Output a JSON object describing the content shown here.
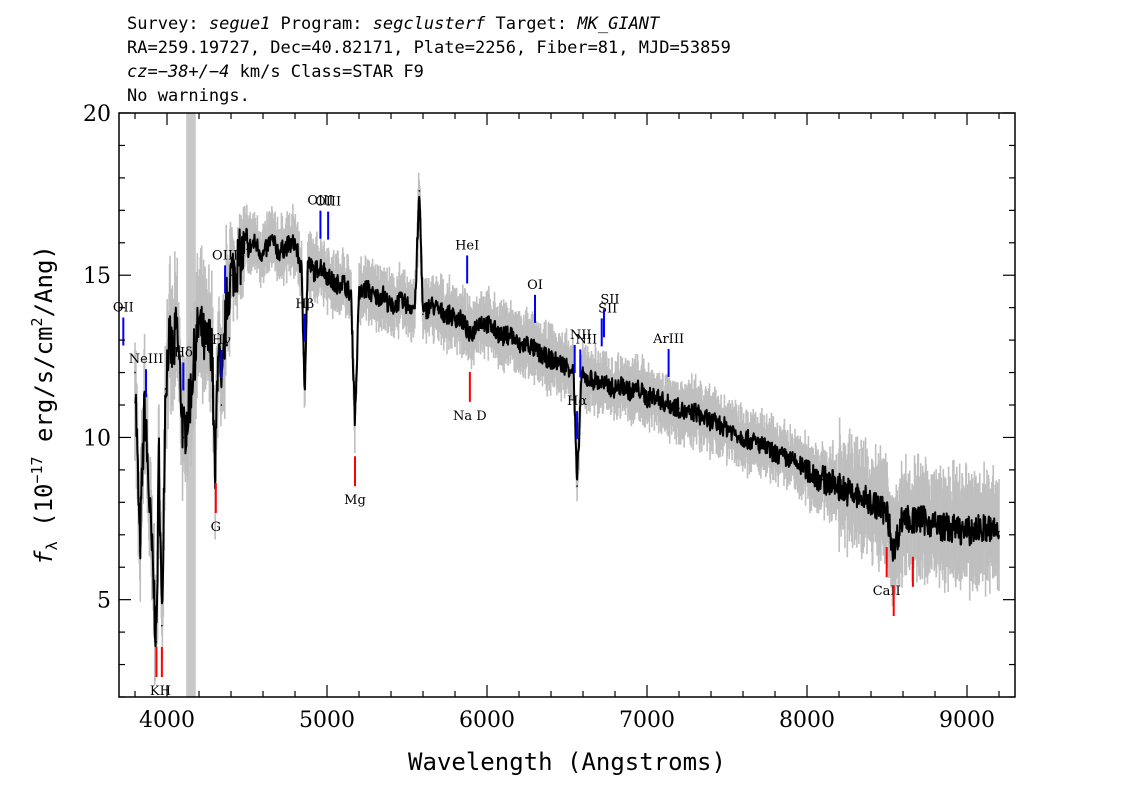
{
  "header": {
    "survey_label": "Survey: ",
    "survey": "segue1",
    "program_label": " Program: ",
    "program": "segclusterf",
    "target_label": " Target: ",
    "target": "MK_GIANT",
    "line2": "RA=259.19727, Dec=40.82171, Plate=2256, Fiber=81, MJD=53859",
    "cz_label": "cz",
    "cz_value": "=−38+/−4",
    "cz_rest": " km/s Class=STAR F9",
    "line4": "No warnings."
  },
  "chart_data": {
    "type": "line",
    "xlabel": "Wavelength (Angstroms)",
    "ylabel_prefix": "f",
    "ylabel_sub": "λ",
    "ylabel_rest": " (10",
    "ylabel_exp": "−17",
    "ylabel_units": " erg/s/cm",
    "ylabel_exp2": "2",
    "ylabel_end": "/Ang)",
    "xlim": [
      3700,
      9300
    ],
    "ylim": [
      2,
      20
    ],
    "xticks": [
      4000,
      5000,
      6000,
      7000,
      8000,
      9000
    ],
    "yticks": [
      5,
      10,
      15,
      20
    ],
    "masked_region": [
      4120,
      4180
    ],
    "series": [
      {
        "x": [
          3800,
          3830,
          3860,
          3900,
          3934,
          3950,
          3968,
          3990,
          4010,
          4040,
          4060,
          4080,
          4102,
          4140,
          4170,
          4200,
          4240,
          4280,
          4300,
          4320,
          4340,
          4370,
          4400,
          4450,
          4500,
          4550,
          4600,
          4650,
          4700,
          4750,
          4800,
          4840,
          4861,
          4880,
          4920,
          4960,
          5000,
          5050,
          5100,
          5150,
          5175,
          5200,
          5250,
          5300,
          5350,
          5400,
          5450,
          5500,
          5550,
          5577,
          5600,
          5650,
          5700,
          5750,
          5800,
          5850,
          5893,
          5950,
          6000,
          6050,
          6100,
          6150,
          6200,
          6250,
          6300,
          6350,
          6400,
          6450,
          6500,
          6540,
          6563,
          6590,
          6620,
          6650,
          6700,
          6750,
          6800,
          6850,
          6900,
          6950,
          7000,
          7050,
          7100,
          7150,
          7200,
          7250,
          7300,
          7350,
          7400,
          7450,
          7500,
          7600,
          7700,
          7800,
          7900,
          8000,
          8100,
          8200,
          8300,
          8400,
          8498,
          8542,
          8600,
          8662,
          8700,
          8800,
          8900,
          9000,
          9100,
          9200
        ],
        "values": [
          12.0,
          6.5,
          11.0,
          7.0,
          3.7,
          9.5,
          4.2,
          11.5,
          13.0,
          12.5,
          13.5,
          12.0,
          10.0,
          11.0,
          12.5,
          13.5,
          12.8,
          13.0,
          8.5,
          13.2,
          11.0,
          14.0,
          15.0,
          15.5,
          15.8,
          16.0,
          15.6,
          16.1,
          15.7,
          15.9,
          16.0,
          15.2,
          11.5,
          15.4,
          15.1,
          15.3,
          15.0,
          14.7,
          14.8,
          14.4,
          10.5,
          14.4,
          14.6,
          14.3,
          14.4,
          14.0,
          14.2,
          14.1,
          14.0,
          17.6,
          13.8,
          14.1,
          13.9,
          13.8,
          13.7,
          13.6,
          13.1,
          13.6,
          13.5,
          13.3,
          13.1,
          13.2,
          12.8,
          12.9,
          12.7,
          12.5,
          12.4,
          12.3,
          12.2,
          12.1,
          8.5,
          11.9,
          11.8,
          11.8,
          11.7,
          11.6,
          11.5,
          11.6,
          11.4,
          11.5,
          11.2,
          11.3,
          11.1,
          11.0,
          10.9,
          10.7,
          10.8,
          10.6,
          10.5,
          10.4,
          10.3,
          10.0,
          9.8,
          9.5,
          9.3,
          9.0,
          8.7,
          8.5,
          8.2,
          8.0,
          7.7,
          6.5,
          7.6,
          7.4,
          7.5,
          7.3,
          7.2,
          7.1,
          7.2,
          7.1
        ]
      }
    ],
    "emission_lines": [
      {
        "label": "OII",
        "x": 3727
      },
      {
        "label": "NeIII",
        "x": 3869
      },
      {
        "label": "Hδ",
        "x": 4102
      },
      {
        "label": "Hγ",
        "x": 4340
      },
      {
        "label": "OIII",
        "x": 4363
      },
      {
        "label": "Hβ",
        "x": 4861
      },
      {
        "label": "OIII",
        "x": 4959
      },
      {
        "label": "OIII",
        "x": 5007
      },
      {
        "label": "HeI",
        "x": 5876
      },
      {
        "label": "OI",
        "x": 6300
      },
      {
        "label": "NII",
        "x": 6548
      },
      {
        "label": "Hα",
        "x": 6563
      },
      {
        "label": "NII",
        "x": 6583
      },
      {
        "label": "SII",
        "x": 6717
      },
      {
        "label": "SII",
        "x": 6731
      },
      {
        "label": "ArIII",
        "x": 7135
      }
    ],
    "absorption_lines": [
      {
        "label": "KH",
        "x": 3934
      },
      {
        "label": "",
        "x": 3968
      },
      {
        "label": "G",
        "x": 4305
      },
      {
        "label": "Mg",
        "x": 5175
      },
      {
        "label": "Na D",
        "x": 5893
      },
      {
        "label": "CaII",
        "x": 8498
      },
      {
        "label": "",
        "x": 8542
      },
      {
        "label": "",
        "x": 8662
      }
    ],
    "colors": {
      "flux": "#000000",
      "noise": "#bfbfbf",
      "emission": "#0000ff",
      "absorption": "#ff0000",
      "mask": "#c8c8c8"
    }
  }
}
